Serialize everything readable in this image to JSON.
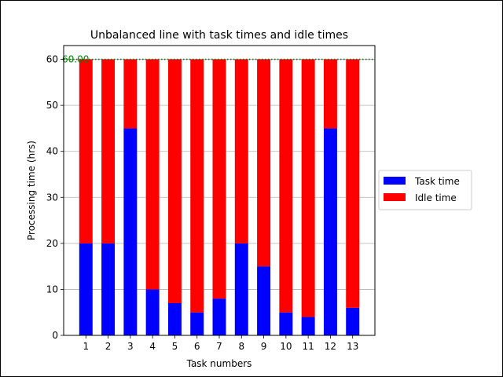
{
  "chart_data": {
    "type": "bar",
    "stacked": true,
    "title": "Unbalanced line with task times and idle times",
    "xlabel": "Task numbers",
    "ylabel": "Processing time (hrs)",
    "categories": [
      "1",
      "2",
      "3",
      "4",
      "5",
      "6",
      "7",
      "8",
      "9",
      "10",
      "11",
      "12",
      "13"
    ],
    "series": [
      {
        "name": "Task time",
        "color": "#0000ff",
        "values": [
          20,
          20,
          45,
          10,
          7,
          5,
          8,
          20,
          15,
          5,
          4,
          45,
          6
        ]
      },
      {
        "name": "Idle time",
        "color": "#ff0000",
        "values": [
          40,
          40,
          15,
          50,
          53,
          55,
          52,
          40,
          45,
          55,
          56,
          15,
          54
        ]
      }
    ],
    "ylim": [
      0,
      63
    ],
    "yticks": [
      0,
      10,
      20,
      30,
      40,
      50,
      60
    ],
    "grid": "y",
    "reference_line": {
      "value": 60,
      "label": "60.00",
      "color": "#008000",
      "style": "dotted"
    },
    "legend_position": "center-right"
  }
}
